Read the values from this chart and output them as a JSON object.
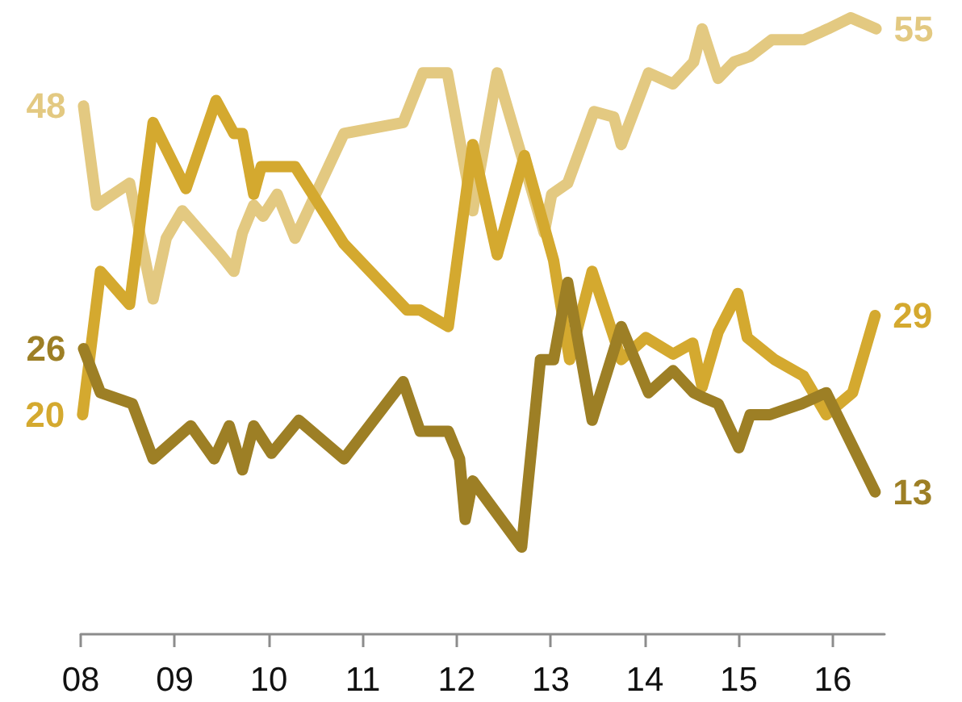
{
  "chart_data": {
    "type": "line",
    "xlim": [
      2008,
      2016.55
    ],
    "xticks": [
      {
        "value": 2008,
        "label": "08"
      },
      {
        "value": 2009,
        "label": "09"
      },
      {
        "value": 2010,
        "label": "10"
      },
      {
        "value": 2011,
        "label": "11"
      },
      {
        "value": 2012,
        "label": "12"
      },
      {
        "value": 2013,
        "label": "13"
      },
      {
        "value": 2014,
        "label": "14"
      },
      {
        "value": 2015,
        "label": "15"
      },
      {
        "value": 2016,
        "label": "16"
      }
    ],
    "tick_labels": "x",
    "marker": "none",
    "line_style": "solid",
    "series": [
      {
        "color": "#e3c981",
        "x": [
          2008.03,
          2008.17,
          2008.52,
          2008.77,
          2008.91,
          2009.08,
          2009.49,
          2009.63,
          2009.72,
          2009.84,
          2009.94,
          2010.09,
          2010.28,
          2010.8,
          2011.43,
          2011.64,
          2011.9,
          2012.17,
          2012.43,
          2012.93,
          2013.01,
          2013.18,
          2013.46,
          2013.67,
          2013.75,
          2014.04,
          2014.3,
          2014.52,
          2014.61,
          2014.78,
          2014.95,
          2015.12,
          2015.35,
          2015.69,
          2015.95,
          2016.19,
          2016.46
        ],
        "values": [
          48,
          39,
          41,
          30.5,
          36,
          38.5,
          34.5,
          33,
          36.5,
          39,
          38,
          40,
          36,
          45.5,
          46.5,
          51,
          51,
          38.5,
          51,
          36.5,
          40,
          41,
          47.5,
          47,
          44.5,
          51,
          50,
          52,
          55,
          50.5,
          52,
          52.5,
          54,
          54,
          55,
          56,
          55
        ],
        "value_labels": [
          "48",
          null,
          null,
          null,
          null,
          null,
          null,
          null,
          null,
          null,
          null,
          null,
          null,
          null,
          null,
          null,
          null,
          null,
          null,
          null,
          null,
          null,
          null,
          null,
          null,
          null,
          null,
          null,
          null,
          null,
          null,
          null,
          null,
          null,
          null,
          null,
          "55"
        ]
      },
      {
        "color": "#d4a92f",
        "x": [
          2008.02,
          2008.21,
          2008.52,
          2008.77,
          2009.12,
          2009.44,
          2009.63,
          2009.72,
          2009.84,
          2009.92,
          2010.28,
          2010.8,
          2011.47,
          2011.61,
          2011.91,
          2012.17,
          2012.43,
          2012.72,
          2013.03,
          2013.2,
          2013.44,
          2013.75,
          2014.01,
          2014.3,
          2014.51,
          2014.61,
          2014.78,
          2014.99,
          2015.09,
          2015.38,
          2015.69,
          2015.93,
          2016.21,
          2016.45
        ],
        "values": [
          20,
          33,
          30,
          46.5,
          40.5,
          48.5,
          45.5,
          45.5,
          40,
          42.5,
          42.5,
          35.5,
          29.5,
          29.5,
          28,
          44.5,
          34.5,
          43.5,
          34,
          25,
          33,
          25,
          27,
          25.5,
          26.5,
          22.5,
          27.5,
          31,
          27,
          25,
          23.5,
          20,
          22,
          29
        ],
        "value_labels": [
          "20",
          null,
          null,
          null,
          null,
          null,
          null,
          null,
          null,
          null,
          null,
          null,
          null,
          null,
          null,
          null,
          null,
          null,
          null,
          null,
          null,
          null,
          null,
          null,
          null,
          null,
          null,
          null,
          null,
          null,
          null,
          null,
          null,
          "29"
        ]
      },
      {
        "color": "#9d7f25",
        "x": [
          2008.03,
          2008.21,
          2008.55,
          2008.77,
          2009.17,
          2009.42,
          2009.58,
          2009.72,
          2009.84,
          2010.03,
          2010.32,
          2010.8,
          2011.43,
          2011.61,
          2011.91,
          2012.03,
          2012.09,
          2012.17,
          2012.69,
          2012.89,
          2013.03,
          2013.18,
          2013.44,
          2013.75,
          2014.04,
          2014.3,
          2014.52,
          2014.64,
          2014.78,
          2015.0,
          2015.12,
          2015.33,
          2015.67,
          2015.93,
          2016.45
        ],
        "values": [
          26,
          22,
          21,
          16,
          19,
          16,
          19,
          15,
          19,
          16.5,
          19.5,
          16,
          23,
          18.5,
          18.5,
          16,
          10.5,
          14,
          8,
          25,
          25,
          32,
          19.5,
          28,
          22,
          24,
          22,
          21.5,
          21,
          17,
          20,
          20,
          21,
          22,
          13
        ],
        "value_labels": [
          "26",
          null,
          null,
          null,
          null,
          null,
          null,
          null,
          null,
          null,
          null,
          null,
          null,
          null,
          null,
          null,
          null,
          null,
          null,
          null,
          null,
          null,
          null,
          null,
          null,
          null,
          null,
          null,
          null,
          null,
          null,
          null,
          null,
          null,
          "13"
        ]
      }
    ]
  }
}
